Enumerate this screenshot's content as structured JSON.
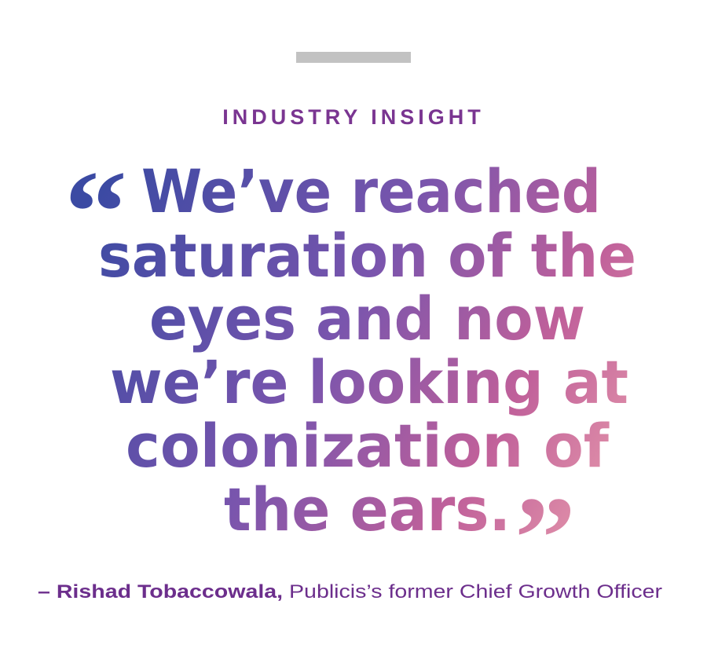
{
  "label": "INDUSTRY INSIGHT",
  "quote": {
    "open_mark": "“",
    "lines": [
      "We’ve reached",
      "saturation of the",
      "eyes and now",
      "we’re looking at",
      "colonization of",
      "the ears."
    ],
    "close_mark": "”"
  },
  "attribution": {
    "name": "– Rishad Tobaccowala,",
    "role": "Publicis’s former Chief Growth Officer"
  }
}
